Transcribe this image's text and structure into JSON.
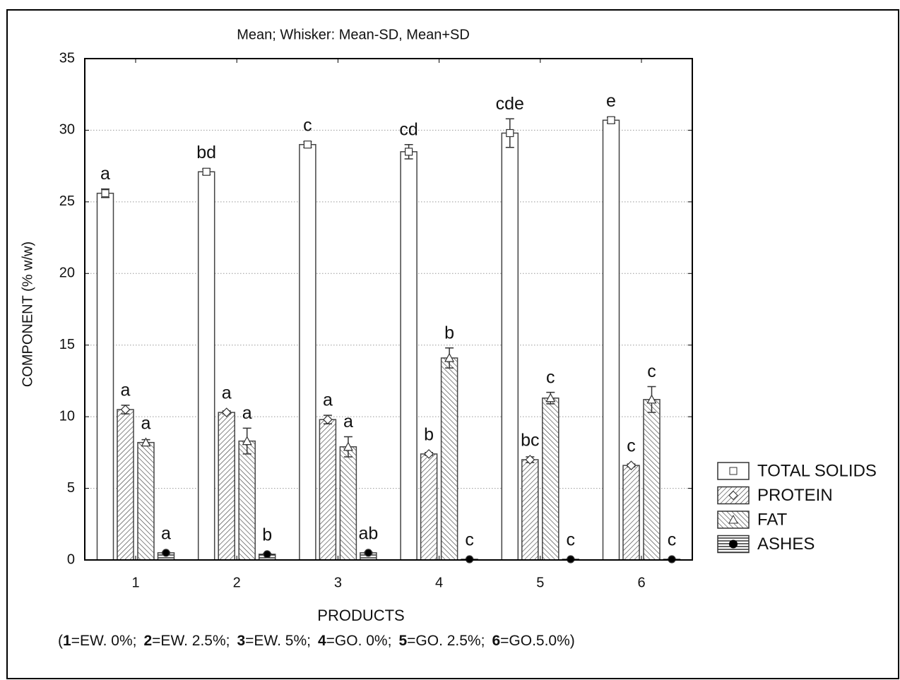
{
  "chart_data": {
    "type": "bar",
    "subtitle": "Mean;  Whisker: Mean-SD, Mean+SD",
    "xlabel": "PRODUCTS",
    "ylabel": "COMPONENT (% w/w)",
    "note_prefix": "(",
    "note_texts": [
      "=EW. 0%;",
      "=EW. 2.5%;",
      "=EW. 5%;",
      "=GO. 0%;",
      "=GO. 2.5%;",
      "=GO.5.0%)"
    ],
    "categories": [
      "1",
      "2",
      "3",
      "4",
      "5",
      "6"
    ],
    "series": [
      {
        "name": "TOTAL SOLIDS",
        "pattern": "none",
        "marker": "square",
        "values": [
          25.6,
          27.1,
          29.0,
          28.5,
          29.8,
          30.7
        ],
        "errors": [
          0.3,
          0.2,
          0.2,
          0.5,
          1.0,
          0.2
        ],
        "letters": [
          "a",
          "bd",
          "c",
          "cd",
          "cde",
          "e"
        ]
      },
      {
        "name": "PROTEIN",
        "pattern": "diagonal",
        "marker": "diamond",
        "values": [
          10.5,
          10.3,
          9.8,
          7.4,
          7.0,
          6.6
        ],
        "errors": [
          0.3,
          0.1,
          0.3,
          0.1,
          0.2,
          0.1
        ],
        "letters": [
          "a",
          "a",
          "a",
          "b",
          "bc",
          "c"
        ]
      },
      {
        "name": "FAT",
        "pattern": "antidiagonal",
        "marker": "triangle",
        "values": [
          8.2,
          8.3,
          7.9,
          14.1,
          11.3,
          11.2
        ],
        "errors": [
          0.2,
          0.9,
          0.7,
          0.7,
          0.4,
          0.9
        ],
        "letters": [
          "a",
          "a",
          "a",
          "b",
          "c",
          "c"
        ]
      },
      {
        "name": "ASHES",
        "pattern": "horizontal",
        "marker": "circle",
        "values": [
          0.5,
          0.4,
          0.5,
          0.05,
          0.05,
          0.05
        ],
        "errors": [
          0.05,
          0.05,
          0.05,
          0.02,
          0.02,
          0.02
        ],
        "letters": [
          "a",
          "b",
          "ab",
          "c",
          "c",
          "c"
        ]
      }
    ],
    "ylim": [
      0,
      35
    ],
    "yticks": [
      0,
      5,
      10,
      15,
      20,
      25,
      30,
      35
    ],
    "grid": true
  }
}
